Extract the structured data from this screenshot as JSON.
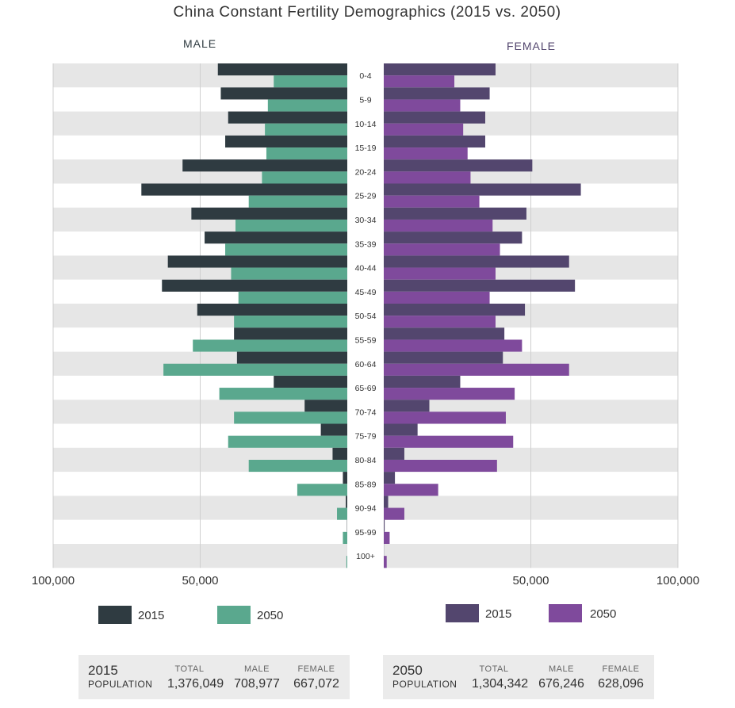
{
  "chart_data": {
    "type": "bar",
    "title": "China Constant Fertility Demographics (2015 vs. 2050)",
    "male_label": "MALE",
    "female_label": "FEMALE",
    "categories": [
      "0-4",
      "5-9",
      "10-14",
      "15-19",
      "20-24",
      "25-29",
      "30-34",
      "35-39",
      "40-44",
      "45-49",
      "50-54",
      "55-59",
      "60-64",
      "65-69",
      "70-74",
      "75-79",
      "80-84",
      "85-89",
      "90-94",
      "95-99",
      "100+"
    ],
    "male_series": [
      {
        "name": "2015",
        "color": "#2f3b41",
        "values": [
          44000,
          43000,
          40500,
          41500,
          56000,
          70000,
          53000,
          48500,
          61000,
          63000,
          51000,
          38500,
          37500,
          25000,
          14500,
          9000,
          5000,
          1500,
          500,
          100,
          10
        ]
      },
      {
        "name": "2050",
        "color": "#5aa88e",
        "values": [
          25000,
          27000,
          28000,
          27500,
          29000,
          33500,
          38000,
          41500,
          39500,
          37000,
          38500,
          52500,
          62500,
          43500,
          38500,
          40500,
          33500,
          17000,
          3500,
          1500,
          300
        ]
      }
    ],
    "female_series": [
      {
        "name": "2015",
        "color": "#53466e",
        "values": [
          38000,
          36000,
          34500,
          34500,
          50500,
          67000,
          48500,
          47000,
          63000,
          65000,
          48000,
          41000,
          40500,
          26000,
          15500,
          11500,
          7000,
          3800,
          1500,
          300,
          50
        ]
      },
      {
        "name": "2050",
        "color": "#7f4a9c",
        "values": [
          24000,
          26000,
          27000,
          28500,
          29500,
          32500,
          37000,
          39500,
          38000,
          36000,
          38000,
          47000,
          63000,
          44500,
          41500,
          44000,
          38500,
          18500,
          7000,
          2000,
          1000
        ]
      }
    ],
    "x_range": [
      0,
      100000
    ],
    "x_ticks_left": [
      "100,000",
      "50,000"
    ],
    "x_ticks_right": [
      "50,000",
      "100,000"
    ],
    "x_tick_values": [
      100000,
      50000
    ]
  },
  "legend": {
    "male": [
      {
        "label": "2015",
        "color": "#2f3b41"
      },
      {
        "label": "2050",
        "color": "#5aa88e"
      }
    ],
    "female": [
      {
        "label": "2015",
        "color": "#53466e"
      },
      {
        "label": "2050",
        "color": "#7f4a9c"
      }
    ]
  },
  "summary": [
    {
      "year": "2015",
      "pop_label": "POPULATION",
      "total_label": "TOTAL",
      "total": "1,376,049",
      "male_label": "MALE",
      "male": "708,977",
      "female_label": "FEMALE",
      "female": "667,072"
    },
    {
      "year": "2050",
      "pop_label": "POPULATION",
      "total_label": "TOTAL",
      "total": "1,304,342",
      "male_label": "MALE",
      "male": "676,246",
      "female_label": "FEMALE",
      "female": "628,096"
    }
  ]
}
